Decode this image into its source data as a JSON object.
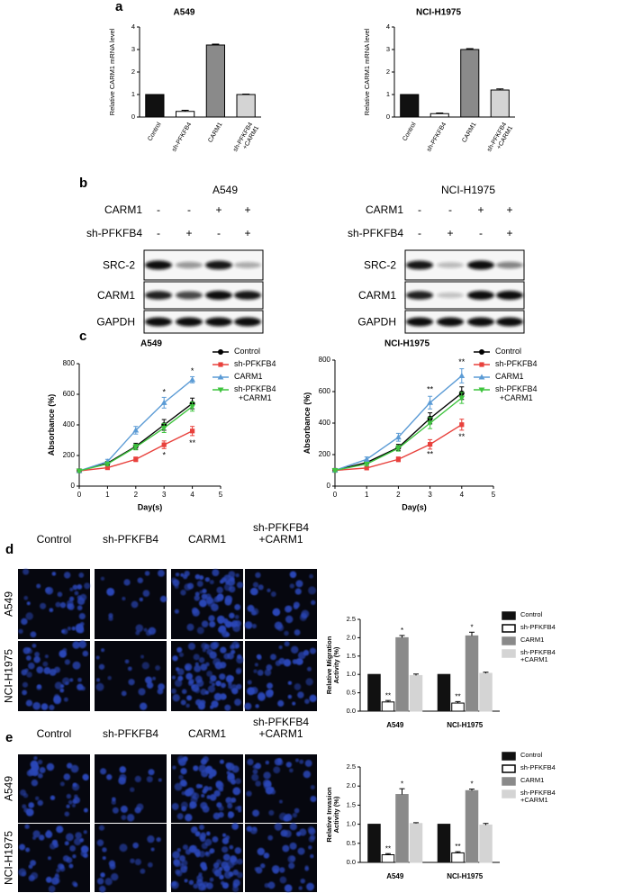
{
  "panel_labels": [
    "a",
    "b",
    "c",
    "d",
    "e"
  ],
  "blots": [
    {
      "title": "A549",
      "conditions": [
        {
          "name": "CARM1",
          "signs": [
            "-",
            "-",
            "+",
            "+"
          ]
        },
        {
          "name": "sh-PFKFB4",
          "signs": [
            "-",
            "+",
            "-",
            "+"
          ]
        }
      ],
      "bands": [
        "SRC-2",
        "CARM1",
        "GAPDH"
      ]
    },
    {
      "title": "NCI-H1975",
      "conditions": [
        {
          "name": "CARM1",
          "signs": [
            "-",
            "-",
            "+",
            "+"
          ]
        },
        {
          "name": "sh-PFKFB4",
          "signs": [
            "-",
            "+",
            "-",
            "+"
          ]
        }
      ],
      "bands": [
        "SRC-2",
        "CARM1",
        "GAPDH"
      ]
    }
  ],
  "images": [
    {
      "columns": [
        "Control",
        "sh-PFKFB4",
        "CARM1",
        "sh-PFKFB4\n+CARM1"
      ],
      "rows": [
        "A549",
        "NCI-H1975"
      ]
    },
    {
      "columns": [
        "Control",
        "sh-PFKFB4",
        "CARM1",
        "sh-PFKFB4\n+CARM1"
      ],
      "rows": [
        "A549",
        "NCI-H1975"
      ]
    }
  ],
  "chart_data": [
    {
      "type": "bar",
      "title": "A549",
      "y_label": "Relative CARM1 mRNA level",
      "categories": [
        "Control",
        "sh-PFKFB4",
        "CARM1",
        "sh-PFKFB4\n+CARM1"
      ],
      "values": [
        1,
        0.25,
        3.2,
        1.0
      ],
      "errors": [
        0,
        0.05,
        0.04,
        0.02
      ],
      "colors": [
        "#111111",
        "#ffffff",
        "#8a8a8a",
        "#d4d4d4"
      ],
      "ylim": [
        0,
        4
      ],
      "yticks": [
        0,
        1,
        2,
        3,
        4
      ]
    },
    {
      "type": "bar",
      "title": "NCI-H1975",
      "y_label": "Relative CARM1 mRNA level",
      "categories": [
        "Control",
        "sh-PFKFB4",
        "CARM1",
        "sh-PFKFB4\n+CARM1"
      ],
      "values": [
        1,
        0.15,
        3.0,
        1.2
      ],
      "errors": [
        0,
        0.03,
        0.04,
        0.05
      ],
      "colors": [
        "#111111",
        "#ffffff",
        "#8a8a8a",
        "#d4d4d4"
      ],
      "ylim": [
        0,
        4
      ],
      "yticks": [
        0,
        1,
        2,
        3,
        4
      ]
    },
    {
      "type": "line",
      "title": "A549",
      "x_label": "Day(s)",
      "y_label": "Absorbance (%)",
      "x": [
        0,
        1,
        2,
        3,
        4
      ],
      "xlim": [
        0,
        5
      ],
      "xticks": [
        0,
        1,
        2,
        3,
        4,
        5
      ],
      "ylim": [
        0,
        800
      ],
      "yticks": [
        0,
        200,
        400,
        600,
        800
      ],
      "series": [
        {
          "name": "Control",
          "color": "#000000",
          "marker": "circle",
          "values": [
            100,
            150,
            260,
            400,
            540
          ],
          "errors": [
            8,
            12,
            20,
            35,
            35
          ]
        },
        {
          "name": "sh-PFKFB4",
          "color": "#e8413c",
          "marker": "square",
          "values": [
            100,
            120,
            175,
            270,
            360
          ],
          "errors": [
            8,
            10,
            15,
            25,
            30
          ]
        },
        {
          "name": "CARM1",
          "color": "#5b9bd5",
          "marker": "triangle",
          "values": [
            100,
            160,
            365,
            545,
            695
          ],
          "errors": [
            8,
            15,
            25,
            35,
            20
          ]
        },
        {
          "name": "sh-PFKFB4\n+CARM1",
          "color": "#3ec43e",
          "marker": "triangle-down",
          "values": [
            100,
            145,
            255,
            380,
            520
          ],
          "errors": [
            8,
            12,
            18,
            30,
            30
          ]
        }
      ],
      "annotations": [
        {
          "text": "*",
          "x": 3,
          "y": 610
        },
        {
          "text": "*",
          "x": 4,
          "y": 750
        },
        {
          "text": "*",
          "x": 3,
          "y": 200
        },
        {
          "text": "**",
          "x": 4,
          "y": 280
        }
      ]
    },
    {
      "type": "line",
      "title": "NCI-H1975",
      "x_label": "Day(s)",
      "y_label": "Absorbance (%)",
      "x": [
        0,
        1,
        2,
        3,
        4
      ],
      "xlim": [
        0,
        5
      ],
      "xticks": [
        0,
        1,
        2,
        3,
        4,
        5
      ],
      "ylim": [
        0,
        800
      ],
      "yticks": [
        0,
        200,
        400,
        600,
        800
      ],
      "series": [
        {
          "name": "Control",
          "color": "#000000",
          "marker": "circle",
          "values": [
            100,
            150,
            245,
            430,
            590
          ],
          "errors": [
            8,
            12,
            20,
            35,
            40
          ]
        },
        {
          "name": "sh-PFKFB4",
          "color": "#e8413c",
          "marker": "square",
          "values": [
            100,
            115,
            170,
            265,
            390
          ],
          "errors": [
            8,
            10,
            15,
            30,
            35
          ]
        },
        {
          "name": "CARM1",
          "color": "#5b9bd5",
          "marker": "triangle",
          "values": [
            100,
            170,
            310,
            530,
            700
          ],
          "errors": [
            8,
            15,
            25,
            40,
            45
          ]
        },
        {
          "name": "sh-PFKFB4\n+CARM1",
          "color": "#3ec43e",
          "marker": "triangle-down",
          "values": [
            100,
            140,
            240,
            400,
            560
          ],
          "errors": [
            8,
            12,
            18,
            35,
            35
          ]
        }
      ],
      "annotations": [
        {
          "text": "**",
          "x": 3,
          "y": 610
        },
        {
          "text": "**",
          "x": 4,
          "y": 785
        },
        {
          "text": "**",
          "x": 3,
          "y": 200
        },
        {
          "text": "**",
          "x": 4,
          "y": 310
        }
      ]
    },
    {
      "type": "grouped_bar",
      "y_label": "Relative Migration\nActivity (%)",
      "categories": [
        "A549",
        "NCI-H1975"
      ],
      "series": [
        {
          "name": "Control",
          "color": "#111111",
          "values": [
            1,
            1
          ],
          "errors": [
            0,
            0
          ]
        },
        {
          "name": "sh-PFKFB4",
          "color": "#ffffff",
          "values": [
            0.25,
            0.22
          ],
          "errors": [
            0.04,
            0.04
          ]
        },
        {
          "name": "CARM1",
          "color": "#8a8a8a",
          "values": [
            2.0,
            2.05
          ],
          "errors": [
            0.06,
            0.1
          ]
        },
        {
          "name": "sh-PFKFB4\n+CARM1",
          "color": "#d4d4d4",
          "values": [
            0.97,
            1.03
          ],
          "errors": [
            0.04,
            0.03
          ]
        }
      ],
      "ylim": [
        0,
        2.5
      ],
      "yticks": [
        {
          "value": 0,
          "label": "0.0"
        },
        0.5,
        {
          "value": 1,
          "label": "1.0"
        },
        1.5,
        {
          "value": 2,
          "label": "2.0"
        },
        2.5
      ],
      "annotations": [
        {
          "text": "**",
          "series": 1,
          "category": 0
        },
        {
          "text": "*",
          "series": 2,
          "category": 0
        },
        {
          "text": "**",
          "series": 1,
          "category": 1
        },
        {
          "text": "*",
          "series": 2,
          "category": 1
        }
      ]
    },
    {
      "type": "grouped_bar",
      "y_label": "Relative Invasion\nActivity (%)",
      "categories": [
        "A549",
        "NCI-H1975"
      ],
      "series": [
        {
          "name": "Control",
          "color": "#111111",
          "values": [
            1,
            1
          ],
          "errors": [
            0,
            0
          ]
        },
        {
          "name": "sh-PFKFB4",
          "color": "#ffffff",
          "values": [
            0.2,
            0.25
          ],
          "errors": [
            0.03,
            0.03
          ]
        },
        {
          "name": "CARM1",
          "color": "#8a8a8a",
          "values": [
            1.78,
            1.88
          ],
          "errors": [
            0.15,
            0.04
          ]
        },
        {
          "name": "sh-PFKFB4\n+CARM1",
          "color": "#d4d4d4",
          "values": [
            1.02,
            0.98
          ],
          "errors": [
            0.02,
            0.04
          ]
        }
      ],
      "ylim": [
        0,
        2.5
      ],
      "yticks": [
        {
          "value": 0,
          "label": "0.0"
        },
        0.5,
        {
          "value": 1,
          "label": "1.0"
        },
        1.5,
        {
          "value": 2,
          "label": "2.0"
        },
        2.5
      ],
      "annotations": [
        {
          "text": "**",
          "series": 1,
          "category": 0
        },
        {
          "text": "*",
          "series": 2,
          "category": 0
        },
        {
          "text": "**",
          "series": 1,
          "category": 1
        },
        {
          "text": "*",
          "series": 2,
          "category": 1
        }
      ]
    }
  ]
}
